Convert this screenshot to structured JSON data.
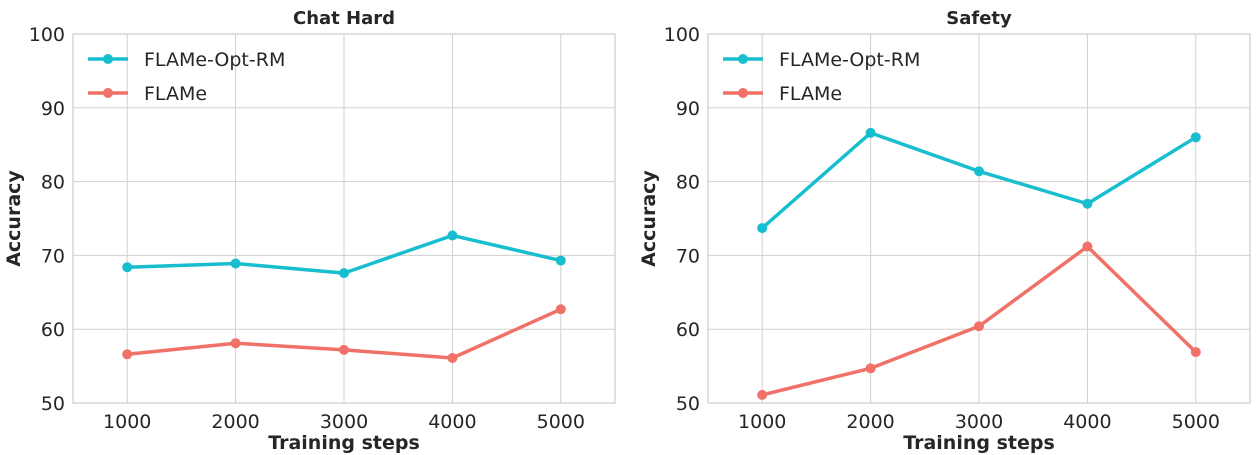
{
  "chart_data": [
    {
      "type": "line",
      "title": "Chat Hard",
      "xlabel": "Training steps",
      "ylabel": "Accuracy",
      "x": [
        1000,
        2000,
        3000,
        4000,
        5000
      ],
      "xlim": [
        500,
        5500
      ],
      "ylim": [
        50,
        100
      ],
      "xticks": [
        "1000",
        "2000",
        "3000",
        "4000",
        "5000"
      ],
      "yticks": [
        "50",
        "60",
        "70",
        "80",
        "90",
        "100"
      ],
      "grid": true,
      "legend": "top-left",
      "series": [
        {
          "name": "FLAMe-Opt-RM",
          "color": "#17becf",
          "values": [
            68.4,
            68.9,
            67.6,
            72.7,
            69.3
          ]
        },
        {
          "name": "FLAMe",
          "color": "#f07167",
          "values": [
            56.6,
            58.1,
            57.2,
            56.1,
            62.7
          ]
        }
      ]
    },
    {
      "type": "line",
      "title": "Safety",
      "xlabel": "Training steps",
      "ylabel": "Accuracy",
      "x": [
        1000,
        2000,
        3000,
        4000,
        5000
      ],
      "xlim": [
        500,
        5500
      ],
      "ylim": [
        50,
        100
      ],
      "xticks": [
        "1000",
        "2000",
        "3000",
        "4000",
        "5000"
      ],
      "yticks": [
        "50",
        "60",
        "70",
        "80",
        "90",
        "100"
      ],
      "grid": true,
      "legend": "top-left",
      "series": [
        {
          "name": "FLAMe-Opt-RM",
          "color": "#17becf",
          "values": [
            73.7,
            86.6,
            81.4,
            77.0,
            86.0
          ]
        },
        {
          "name": "FLAMe",
          "color": "#f07167",
          "values": [
            51.1,
            54.7,
            60.4,
            71.2,
            56.9
          ]
        }
      ]
    }
  ]
}
